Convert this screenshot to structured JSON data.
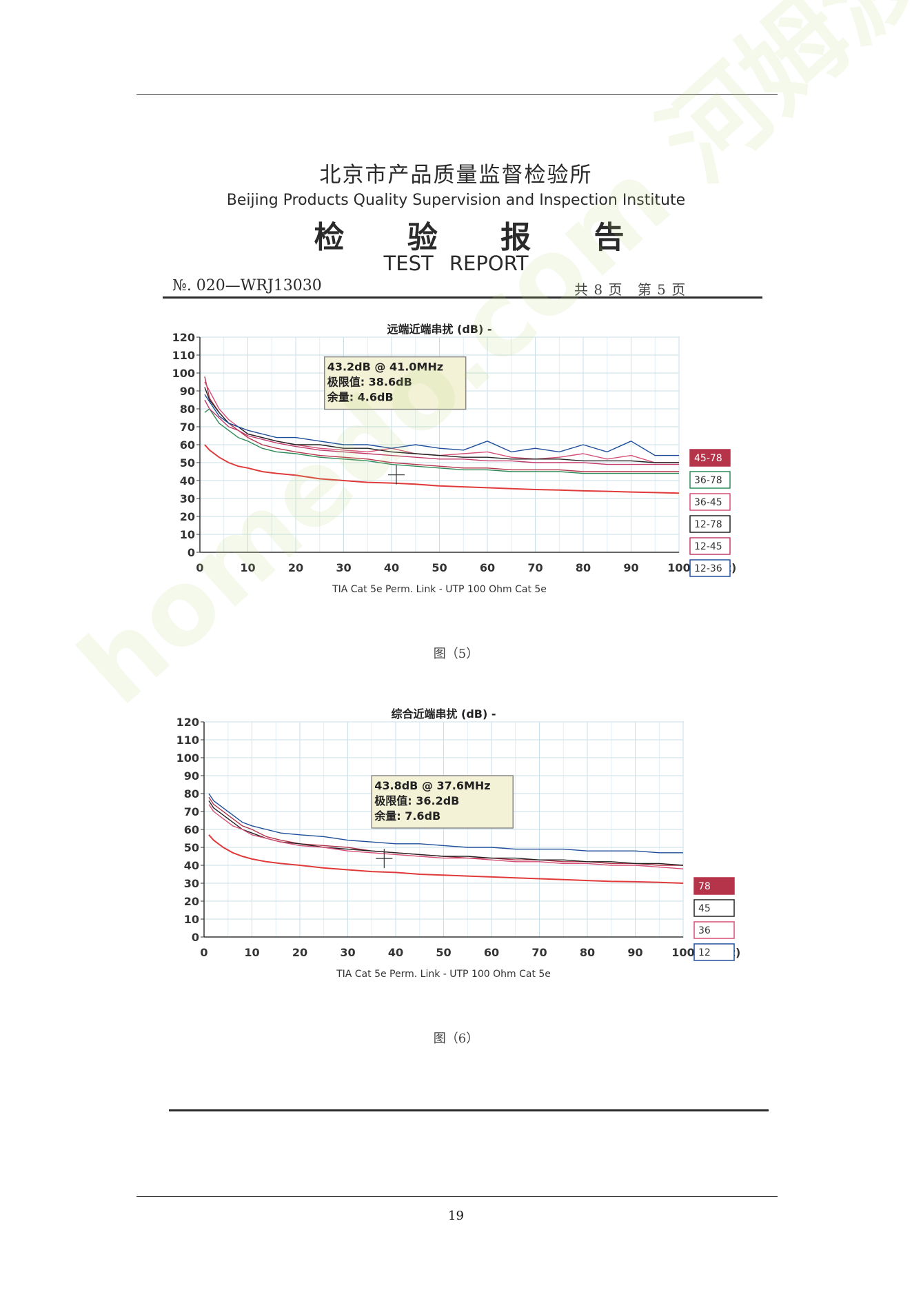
{
  "header": {
    "institute_cn": "北京市产品质量监督检验所",
    "institute_en": "Beijing Products Quality Supervision and Inspection Institute",
    "report_cn": "检 验 报 告",
    "report_en": "TEST REPORT",
    "report_no": "№. 020—WRJ13030",
    "total_pages_label": "共 8 页",
    "current_page_label": "第 5 页"
  },
  "figures": [
    {
      "caption": "图（5）",
      "standard_note": "TIA Cat 5e Perm. Link - UTP 100 Ohm Cat 5e",
      "annotation": [
        "43.2dB @ 41.0MHz",
        "极限值: 38.6dB",
        "余量: 4.6dB"
      ],
      "legend": [
        "45-78",
        "36-78",
        "36-45",
        "12-78",
        "12-45",
        "12-36"
      ]
    },
    {
      "caption": "图（6）",
      "standard_note": "TIA Cat 5e Perm. Link - UTP 100 Ohm Cat 5e",
      "annotation": [
        "43.8dB @ 37.6MHz",
        "极限值: 36.2dB",
        "余量: 7.6dB"
      ],
      "legend": [
        "78",
        "45",
        "36",
        "12"
      ]
    }
  ],
  "page_number": "19",
  "watermark": "homedo.com 河姆渡",
  "chart_data": [
    {
      "type": "line",
      "title": "远端近端串扰 (dB) -",
      "xlabel": "(MHz)",
      "ylabel": "",
      "xlim": [
        0,
        100
      ],
      "ylim": [
        0,
        120
      ],
      "x_ticks": [
        0,
        10,
        20,
        30,
        40,
        50,
        60,
        70,
        80,
        90,
        100
      ],
      "y_ticks": [
        0,
        10,
        20,
        30,
        40,
        50,
        60,
        70,
        80,
        90,
        100,
        110,
        120
      ],
      "grid": true,
      "legend_position": "right",
      "x": [
        1,
        2,
        4,
        6,
        8,
        10,
        13,
        16,
        20,
        25,
        30,
        35,
        40,
        45,
        50,
        55,
        60,
        65,
        70,
        75,
        80,
        85,
        90,
        95,
        100
      ],
      "series": [
        {
          "name": "45-78",
          "color": "#b5344a",
          "values": [
            98,
            86,
            78,
            72,
            68,
            64,
            60,
            58,
            56,
            54,
            53,
            52,
            50,
            49,
            48,
            47,
            47,
            46,
            46,
            46,
            45,
            45,
            45,
            45,
            45
          ]
        },
        {
          "name": "36-78",
          "color": "#2e8b57",
          "values": [
            78,
            80,
            72,
            68,
            64,
            62,
            58,
            56,
            55,
            53,
            52,
            51,
            49,
            48,
            47,
            46,
            46,
            45,
            45,
            45,
            44,
            44,
            44,
            44,
            44
          ]
        },
        {
          "name": "36-45",
          "color": "#d64f76",
          "values": [
            95,
            90,
            80,
            74,
            70,
            66,
            64,
            62,
            60,
            58,
            57,
            56,
            58,
            55,
            54,
            55,
            56,
            53,
            52,
            53,
            55,
            52,
            54,
            50,
            50
          ]
        },
        {
          "name": "12-78",
          "color": "#222222",
          "values": [
            92,
            85,
            78,
            72,
            70,
            66,
            64,
            62,
            60,
            60,
            58,
            58,
            56,
            55,
            54,
            53,
            53,
            52,
            52,
            52,
            51,
            51,
            51,
            50,
            50
          ]
        },
        {
          "name": "12-45",
          "color": "#c23b6b",
          "values": [
            85,
            80,
            75,
            70,
            68,
            65,
            63,
            61,
            59,
            57,
            56,
            55,
            54,
            53,
            52,
            52,
            51,
            51,
            50,
            50,
            50,
            49,
            49,
            49,
            49
          ]
        },
        {
          "name": "12-36",
          "color": "#1f4e9a",
          "values": [
            88,
            84,
            76,
            72,
            70,
            68,
            66,
            64,
            64,
            62,
            60,
            60,
            58,
            60,
            58,
            57,
            62,
            56,
            58,
            56,
            60,
            56,
            62,
            54,
            54
          ]
        }
      ],
      "limit": {
        "name": "limit",
        "color": "#e03a3a",
        "values": [
          60,
          57,
          53,
          50,
          48,
          47,
          45,
          44,
          43,
          41,
          40,
          39,
          38.6,
          38,
          37,
          36.5,
          36,
          35.5,
          35,
          34.7,
          34.3,
          34,
          33.6,
          33.3,
          33
        ]
      },
      "marker": {
        "x": 41.0,
        "y": 43.2
      }
    },
    {
      "type": "line",
      "title": "综合近端串扰 (dB) -",
      "xlabel": "(MHz)",
      "ylabel": "",
      "xlim": [
        0,
        100
      ],
      "ylim": [
        0,
        120
      ],
      "x_ticks": [
        0,
        10,
        20,
        30,
        40,
        50,
        60,
        70,
        80,
        90,
        100
      ],
      "y_ticks": [
        0,
        10,
        20,
        30,
        40,
        50,
        60,
        70,
        80,
        90,
        100,
        110,
        120
      ],
      "grid": true,
      "legend_position": "right",
      "x": [
        1,
        2,
        4,
        6,
        8,
        10,
        13,
        16,
        20,
        25,
        30,
        35,
        40,
        45,
        50,
        55,
        60,
        65,
        70,
        75,
        80,
        85,
        90,
        95,
        100
      ],
      "series": [
        {
          "name": "78",
          "color": "#b5344a",
          "values": [
            78,
            74,
            70,
            66,
            62,
            60,
            56,
            54,
            52,
            51,
            50,
            48,
            47,
            46,
            45,
            44,
            44,
            43,
            43,
            42,
            42,
            41,
            41,
            40,
            40
          ]
        },
        {
          "name": "45",
          "color": "#222222",
          "values": [
            76,
            72,
            68,
            64,
            60,
            58,
            55,
            53,
            52,
            50,
            49,
            48,
            47,
            46,
            45,
            45,
            44,
            44,
            43,
            43,
            42,
            42,
            41,
            41,
            40
          ]
        },
        {
          "name": "36",
          "color": "#d64f76",
          "values": [
            74,
            70,
            66,
            62,
            60,
            57,
            55,
            53,
            51,
            50,
            48,
            47,
            46,
            45,
            44,
            44,
            43,
            42,
            42,
            41,
            41,
            40,
            40,
            39,
            38
          ]
        },
        {
          "name": "12",
          "color": "#1f4e9a",
          "values": [
            80,
            76,
            72,
            68,
            64,
            62,
            60,
            58,
            57,
            56,
            54,
            53,
            52,
            52,
            51,
            50,
            50,
            49,
            49,
            49,
            48,
            48,
            48,
            47,
            47
          ]
        }
      ],
      "limit": {
        "name": "limit",
        "color": "#e03a3a",
        "values": [
          57,
          54,
          50,
          47,
          45,
          43.5,
          42,
          41,
          40,
          38.5,
          37.5,
          36.5,
          36,
          35,
          34.5,
          34,
          33.5,
          33,
          32.5,
          32,
          31.5,
          31,
          30.8,
          30.5,
          30
        ]
      },
      "marker": {
        "x": 37.6,
        "y": 43.8
      }
    }
  ]
}
